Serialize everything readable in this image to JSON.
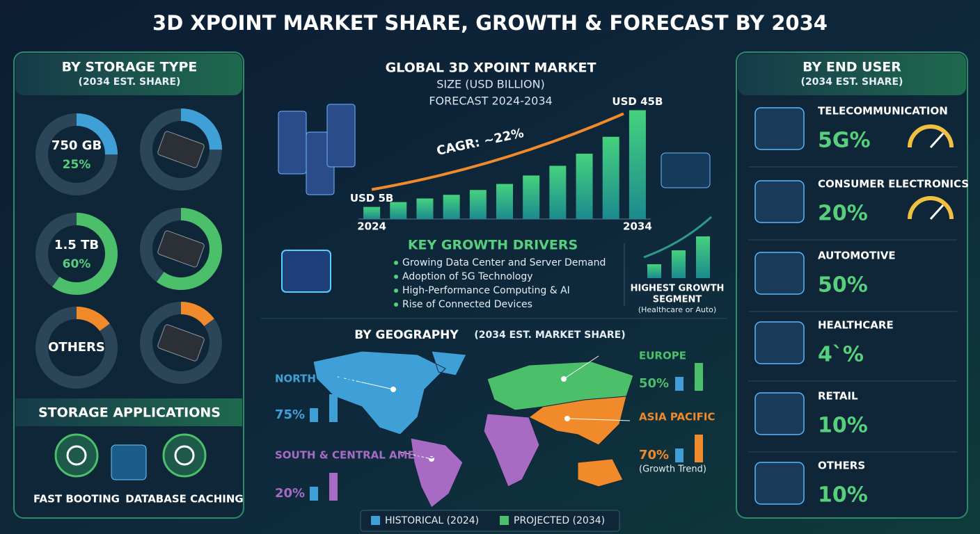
{
  "title": "3D XPOINT MARKET SHARE, GROWTH & FORECAST BY 2034",
  "storage_type": {
    "title": "BY STORAGE TYPE",
    "subtitle": "(2034 EST. SHARE)",
    "items": [
      {
        "label": "750 GB",
        "share": 25,
        "share_label": "25%",
        "color": "#3fa0d8"
      },
      {
        "label": "1.5 TB",
        "share": 60,
        "share_label": "60%",
        "color": "#4cbf6b"
      },
      {
        "label": "OTHERS",
        "share": 15,
        "color": "#f08a2a"
      }
    ]
  },
  "storage_applications": {
    "title": "STORAGE APPLICATIONS",
    "items": [
      "FAST BOOTING",
      "DATABASE CACHING"
    ]
  },
  "chart_data": {
    "type": "bar",
    "title": "GLOBAL 3D XPOINT MARKET",
    "subtitle": "SIZE (USD BILLION)",
    "period": "FORECAST 2024-2034",
    "annotation": "CAGR: ~22%",
    "categories": [
      "2024",
      null,
      null,
      null,
      null,
      null,
      null,
      null,
      null,
      null,
      "2034"
    ],
    "values": [
      5,
      7,
      8.5,
      10,
      12,
      14.5,
      18,
      22,
      27,
      34,
      45
    ],
    "value_labels": [
      "USD 5B",
      null,
      null,
      null,
      null,
      null,
      null,
      null,
      null,
      null,
      "USD 45B"
    ],
    "ylim": [
      0,
      46
    ],
    "color": "#3cc48a"
  },
  "growth_drivers": {
    "title": "KEY GROWTH DRIVERS",
    "items": [
      "Growing Data Center and Server Demand",
      "Adoption of 5G Technology",
      "High-Performance Computing & AI",
      "Rise of Connected Devices"
    ]
  },
  "highest_growth": {
    "title": "HIGHEST GROWTH",
    "title2": "SEGMENT",
    "note": "(Healthcare or Auto)"
  },
  "geography": {
    "title": "BY GEOGRAPHY",
    "subtitle": "(2034 EST. MARKET SHARE)",
    "regions": [
      {
        "name": "NORTH AMERICA",
        "share": "75%",
        "color": "#3fa0d8"
      },
      {
        "name": "EUROPE",
        "share": "50%",
        "color": "#4cbf6b"
      },
      {
        "name": "ASIA PACIFIC",
        "share": "70%",
        "note": "(Growth Trend)",
        "color": "#f08a2a"
      },
      {
        "name": "SOUTH & CENTRAL AMERICA",
        "share": "20%",
        "color": "#a86bc4"
      }
    ],
    "legend": [
      "HISTORICAL (2024)",
      "PROJECTED (2034)"
    ]
  },
  "end_user": {
    "title": "BY END USER",
    "subtitle": "(2034 EST. SHARE)",
    "items": [
      {
        "name": "TELECOMMUNICATION",
        "share": "5G%"
      },
      {
        "name": "CONSUMER ELECTRONICS",
        "share": "20%"
      },
      {
        "name": "AUTOMOTIVE",
        "share": "50%"
      },
      {
        "name": "HEALTHCARE",
        "share": "4`%"
      },
      {
        "name": "RETAIL",
        "share": "10%"
      },
      {
        "name": "OTHERS",
        "share": "10%"
      }
    ]
  }
}
